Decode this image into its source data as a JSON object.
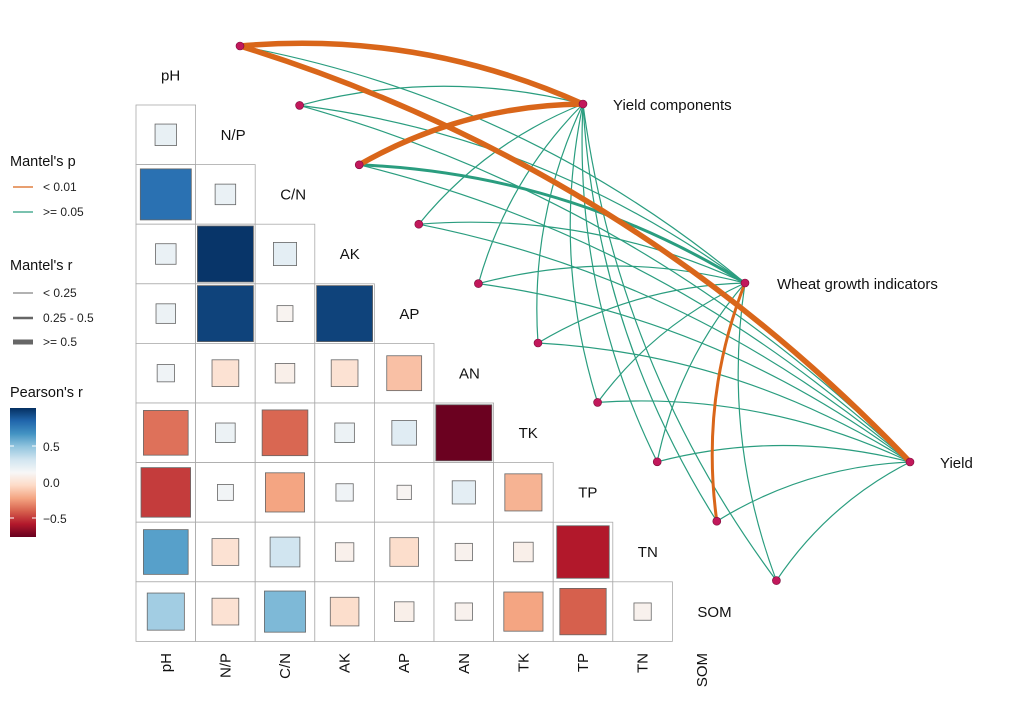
{
  "chart_data": {
    "type": "heatmap",
    "variables": [
      "pH",
      "N/P",
      "C/N",
      "AK",
      "AP",
      "AN",
      "TK",
      "TP",
      "TN",
      "SOM"
    ],
    "pearson_r": [
      [
        0.08
      ],
      [
        0.75,
        0.07
      ],
      [
        0.07,
        0.98,
        0.1
      ],
      [
        0.06,
        0.93,
        -0.03,
        0.93
      ],
      [
        0.04,
        -0.15,
        -0.06,
        -0.15,
        -0.3
      ],
      [
        -0.55,
        0.06,
        -0.58,
        0.06,
        0.12,
        -0.99
      ],
      [
        -0.7,
        0.03,
        -0.4,
        0.04,
        -0.02,
        0.1,
        -0.35
      ],
      [
        0.55,
        -0.15,
        0.2,
        -0.05,
        -0.18,
        -0.04,
        -0.06,
        -0.8
      ],
      [
        0.35,
        -0.15,
        0.45,
        -0.18,
        -0.06,
        -0.04,
        -0.4,
        -0.6,
        -0.04
      ]
    ],
    "targets": [
      "Yield components",
      "Wheat growth indicators",
      "Yield"
    ],
    "mantel_edges": [
      {
        "env": "pH",
        "target": "Yield components",
        "p": "< 0.01",
        "r": ">= 0.5"
      },
      {
        "env": "pH",
        "target": "Wheat growth indicators",
        "p": ">= 0.05",
        "r": "< 0.25"
      },
      {
        "env": "pH",
        "target": "Yield",
        "p": "< 0.01",
        "r": ">= 0.5"
      },
      {
        "env": "N/P",
        "target": "Yield components",
        "p": ">= 0.05",
        "r": "< 0.25"
      },
      {
        "env": "N/P",
        "target": "Wheat growth indicators",
        "p": ">= 0.05",
        "r": "< 0.25"
      },
      {
        "env": "N/P",
        "target": "Yield",
        "p": ">= 0.05",
        "r": "< 0.25"
      },
      {
        "env": "C/N",
        "target": "Yield components",
        "p": "< 0.01",
        "r": ">= 0.5"
      },
      {
        "env": "C/N",
        "target": "Wheat growth indicators",
        "p": ">= 0.05",
        "r": "0.25 - 0.5"
      },
      {
        "env": "C/N",
        "target": "Yield",
        "p": ">= 0.05",
        "r": "< 0.25"
      },
      {
        "env": "AK",
        "target": "Yield components",
        "p": ">= 0.05",
        "r": "< 0.25"
      },
      {
        "env": "AK",
        "target": "Wheat growth indicators",
        "p": ">= 0.05",
        "r": "< 0.25"
      },
      {
        "env": "AK",
        "target": "Yield",
        "p": ">= 0.05",
        "r": "< 0.25"
      },
      {
        "env": "AP",
        "target": "Yield components",
        "p": ">= 0.05",
        "r": "< 0.25"
      },
      {
        "env": "AP",
        "target": "Wheat growth indicators",
        "p": ">= 0.05",
        "r": "< 0.25"
      },
      {
        "env": "AP",
        "target": "Yield",
        "p": ">= 0.05",
        "r": "< 0.25"
      },
      {
        "env": "AN",
        "target": "Yield components",
        "p": ">= 0.05",
        "r": "< 0.25"
      },
      {
        "env": "AN",
        "target": "Wheat growth indicators",
        "p": ">= 0.05",
        "r": "< 0.25"
      },
      {
        "env": "AN",
        "target": "Yield",
        "p": ">= 0.05",
        "r": "< 0.25"
      },
      {
        "env": "TK",
        "target": "Yield components",
        "p": ">= 0.05",
        "r": "< 0.25"
      },
      {
        "env": "TK",
        "target": "Wheat growth indicators",
        "p": ">= 0.05",
        "r": "< 0.25"
      },
      {
        "env": "TK",
        "target": "Yield",
        "p": ">= 0.05",
        "r": "< 0.25"
      },
      {
        "env": "TP",
        "target": "Yield components",
        "p": ">= 0.05",
        "r": "< 0.25"
      },
      {
        "env": "TP",
        "target": "Wheat growth indicators",
        "p": ">= 0.05",
        "r": "< 0.25"
      },
      {
        "env": "TP",
        "target": "Yield",
        "p": ">= 0.05",
        "r": "< 0.25"
      },
      {
        "env": "TN",
        "target": "Yield components",
        "p": ">= 0.05",
        "r": "< 0.25"
      },
      {
        "env": "TN",
        "target": "Wheat growth indicators",
        "p": "< 0.01",
        "r": "0.25 - 0.5"
      },
      {
        "env": "TN",
        "target": "Yield",
        "p": ">= 0.05",
        "r": "< 0.25"
      },
      {
        "env": "SOM",
        "target": "Yield components",
        "p": ">= 0.05",
        "r": "< 0.25"
      },
      {
        "env": "SOM",
        "target": "Wheat growth indicators",
        "p": ">= 0.05",
        "r": "< 0.25"
      },
      {
        "env": "SOM",
        "target": "Yield",
        "p": ">= 0.05",
        "r": "< 0.25"
      }
    ],
    "legend": {
      "mantel_p": {
        "title": "Mantel's p",
        "items": [
          "< 0.01",
          ">= 0.05"
        ],
        "colors": [
          "#d9661a",
          "#2a9d7f"
        ]
      },
      "mantel_r": {
        "title": "Mantel's r",
        "items": [
          "< 0.25",
          "0.25 - 0.5",
          ">= 0.5"
        ]
      },
      "pearson": {
        "title": "Pearson's r",
        "ticks": [
          "0.5",
          "0.0",
          "−0.5"
        ],
        "range": [
          -1,
          1
        ],
        "palette": "RdBu"
      }
    },
    "node_color": "#c2185b"
  }
}
